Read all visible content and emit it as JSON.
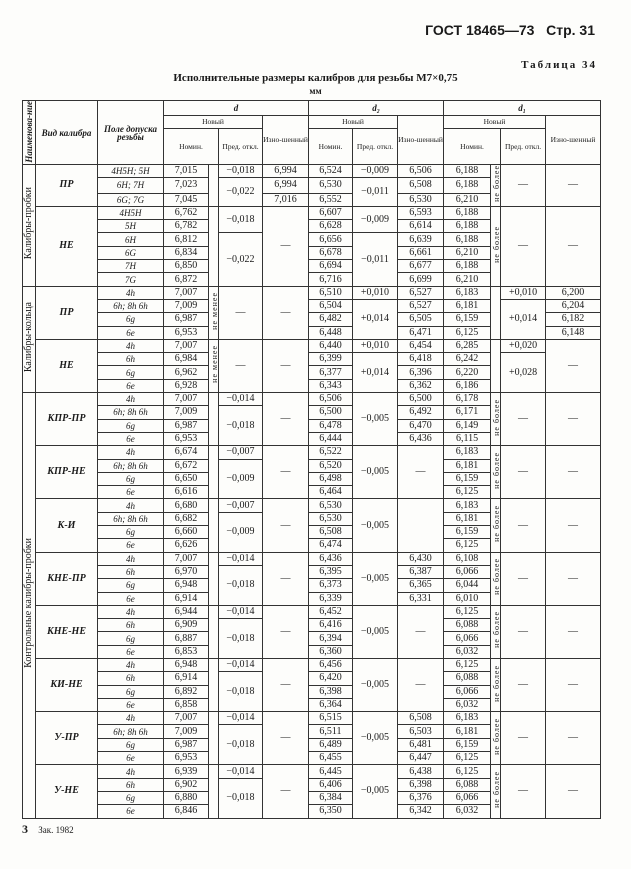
{
  "header": {
    "gost": "ГОСТ 18465—73",
    "page": "Стр. 31"
  },
  "table_no": "Таблица 34",
  "title": "Исполнительные размеры калибров для резьбы М7×0,75",
  "unit": "мм",
  "columns": {
    "name": "Наименова-ние",
    "kind": "Вид калибра",
    "field": "Поле допуска резьбы",
    "d": "d",
    "d2": "d₂",
    "d1": "d₁",
    "new": "Новый",
    "nom": "Номин.",
    "dev": "Пред. откл.",
    "worn": "Изно-шенный"
  },
  "sections": [
    {
      "label": "Калибры-пробки",
      "groups": [
        {
          "kind": "ПР",
          "cols": {
            "field": [
              "4H5H; 5H",
              "6H; 7H",
              "6G; 7G"
            ],
            "d_nom": [
              "7,015",
              "7,023",
              "7,045"
            ],
            "d_note": [
              [
                "",
                3
              ]
            ],
            "d_dev": [
              "−0,018",
              [
                "−0,022",
                2
              ]
            ],
            "d_worn": [
              "6,994",
              "6,994",
              "7,016"
            ],
            "d2_nom": [
              "6,524",
              "6,530",
              "6,552"
            ],
            "d2_dev": [
              "−0,009",
              [
                "−0,011",
                2
              ]
            ],
            "d2_worn": [
              "6,506",
              "6,508",
              "6,530"
            ],
            "d1_nom": [
              "6,188",
              "6,188",
              "6,210"
            ],
            "d1_note": [
              [
                "не более",
                3
              ]
            ],
            "d1_dev": [
              [
                "—",
                3
              ]
            ],
            "d1_worn": [
              [
                "—",
                3
              ]
            ]
          }
        },
        {
          "kind": "НЕ",
          "cols": {
            "field": [
              "4H5H",
              "5H",
              "6H",
              "6G",
              "7H",
              "7G"
            ],
            "d_nom": [
              "6,762",
              "6,782",
              "6,812",
              "6,834",
              "6,850",
              "6,872"
            ],
            "d_note": [
              [
                "",
                6
              ]
            ],
            "d_dev": [
              [
                "−0,018",
                2
              ],
              [
                "−0,022",
                4
              ]
            ],
            "d_worn": [
              [
                "—",
                6
              ]
            ],
            "d2_nom": [
              "6,607",
              "6,628",
              "6,656",
              "6,678",
              "6,694",
              "6,716"
            ],
            "d2_dev": [
              [
                "−0,009",
                2
              ],
              [
                "−0,011",
                4
              ]
            ],
            "d2_worn": [
              "6,593",
              "6,614",
              "6,639",
              "6,661",
              "6,677",
              "6,699"
            ],
            "d1_nom": [
              "6,188",
              "6,188",
              "6,188",
              "6,210",
              "6,188",
              "6,210"
            ],
            "d1_note": [
              [
                "не более",
                6
              ]
            ],
            "d1_dev": [
              [
                "—",
                6
              ]
            ],
            "d1_worn": [
              [
                "—",
                6
              ]
            ]
          }
        }
      ]
    },
    {
      "label": "Калибры-кольца",
      "groups": [
        {
          "kind": "ПР",
          "cols": {
            "field": [
              "4h",
              "6h; 8h 6h",
              "6g",
              "6e"
            ],
            "d_nom": [
              "7,007",
              "7,009",
              "6,987",
              "6,953"
            ],
            "d_note": [
              [
                "не менее",
                4
              ]
            ],
            "d_dev": [
              [
                "—",
                4
              ]
            ],
            "d_worn": [
              [
                "—",
                4
              ]
            ],
            "d2_nom": [
              "6,510",
              "6,504",
              "6,482",
              "6,448"
            ],
            "d2_dev": [
              "+0,010",
              [
                "+0,014",
                3
              ]
            ],
            "d2_worn": [
              "6,527",
              "6,527",
              "6,505",
              "6,471"
            ],
            "d1_nom": [
              "6,183",
              "6,181",
              "6,159",
              "6,125"
            ],
            "d1_note": [
              [
                "",
                4
              ]
            ],
            "d1_dev": [
              "+0,010",
              [
                "+0,014",
                3
              ]
            ],
            "d1_worn": [
              "6,200",
              "6,204",
              "6,182",
              "6,148"
            ]
          }
        },
        {
          "kind": "НЕ",
          "cols": {
            "field": [
              "4h",
              "6h",
              "6g",
              "6e"
            ],
            "d_nom": [
              "7,007",
              "6,984",
              "6,962",
              "6,928"
            ],
            "d_note": [
              [
                "не менее",
                4
              ]
            ],
            "d_dev": [
              [
                "—",
                4
              ]
            ],
            "d_worn": [
              [
                "—",
                4
              ]
            ],
            "d2_nom": [
              "6,440",
              "6,399",
              "6,377",
              "6,343"
            ],
            "d2_dev": [
              "+0,010",
              [
                "+0,014",
                3
              ]
            ],
            "d2_worn": [
              "6,454",
              "6,418",
              "6,396",
              "6,362"
            ],
            "d1_nom": [
              "6,285",
              "6,242",
              "6,220",
              "6,186"
            ],
            "d1_note": [
              [
                "",
                4
              ]
            ],
            "d1_dev": [
              "+0,020",
              [
                "+0,028",
                3
              ]
            ],
            "d1_worn": [
              [
                "—",
                4
              ]
            ]
          }
        }
      ]
    },
    {
      "label": "Контрольные калибры-пробки",
      "groups": [
        {
          "kind": "КПР-ПР",
          "cols": {
            "field": [
              "4h",
              "6h; 8h 6h",
              "6g",
              "6e"
            ],
            "d_nom": [
              "7,007",
              "7,009",
              "6,987",
              "6,953"
            ],
            "d_note": [
              [
                "",
                4
              ]
            ],
            "d_dev": [
              "−0,014",
              [
                "−0,018",
                3
              ]
            ],
            "d_worn": [
              [
                "—",
                4
              ]
            ],
            "d2_nom": [
              "6,506",
              "6,500",
              "6,478",
              "6,444"
            ],
            "d2_dev": [
              [
                "−0,005",
                4
              ]
            ],
            "d2_worn": [
              "6,500",
              "6,492",
              "6,470",
              "6,436"
            ],
            "d1_nom": [
              "6,178",
              "6,171",
              "6,149",
              "6,115"
            ],
            "d1_note": [
              [
                "не более",
                4
              ]
            ],
            "d1_dev": [
              [
                "—",
                4
              ]
            ],
            "d1_worn": [
              [
                "—",
                4
              ]
            ]
          }
        },
        {
          "kind": "КПР-НЕ",
          "cols": {
            "field": [
              "4h",
              "6h; 8h 6h",
              "6g",
              "6e"
            ],
            "d_nom": [
              "6,674",
              "6,672",
              "6,650",
              "6,616"
            ],
            "d_note": [
              [
                "",
                4
              ]
            ],
            "d_dev": [
              "−0,007",
              [
                "−0,009",
                3
              ]
            ],
            "d_worn": [
              [
                "—",
                4
              ]
            ],
            "d2_nom": [
              "6,522",
              "6,520",
              "6,498",
              "6,464"
            ],
            "d2_dev": [
              [
                "−0,005",
                4
              ]
            ],
            "d2_worn": [
              [
                "—",
                4
              ]
            ],
            "d1_nom": [
              "6,183",
              "6,181",
              "6,159",
              "6,125"
            ],
            "d1_note": [
              [
                "не более",
                4
              ]
            ],
            "d1_dev": [
              [
                "—",
                4
              ]
            ],
            "d1_worn": [
              [
                "—",
                4
              ]
            ]
          }
        },
        {
          "kind": "К-И",
          "cols": {
            "field": [
              "4h",
              "6h; 8h 6h",
              "6g",
              "6e"
            ],
            "d_nom": [
              "6,680",
              "6,682",
              "6,660",
              "6,626"
            ],
            "d_note": [
              [
                "",
                4
              ]
            ],
            "d_dev": [
              "−0,007",
              [
                "−0,009",
                3
              ]
            ],
            "d_worn": [
              [
                "—",
                4
              ]
            ],
            "d2_nom": [
              "6,530",
              "6,530",
              "6,508",
              "6,474"
            ],
            "d2_dev": [
              [
                "−0,005",
                4
              ]
            ],
            "d2_worn": [
              [
                "",
                4
              ]
            ],
            "d1_nom": [
              "6,183",
              "6,181",
              "6,159",
              "6,125"
            ],
            "d1_note": [
              [
                "не более",
                4
              ]
            ],
            "d1_dev": [
              [
                "—",
                4
              ]
            ],
            "d1_worn": [
              [
                "—",
                4
              ]
            ]
          }
        },
        {
          "kind": "КНЕ-ПР",
          "cols": {
            "field": [
              "4h",
              "6h",
              "6g",
              "6e"
            ],
            "d_nom": [
              "7,007",
              "6,970",
              "6,948",
              "6,914"
            ],
            "d_note": [
              [
                "",
                4
              ]
            ],
            "d_dev": [
              "−0,014",
              [
                "−0,018",
                3
              ]
            ],
            "d_worn": [
              [
                "—",
                4
              ]
            ],
            "d2_nom": [
              "6,436",
              "6,395",
              "6,373",
              "6,339"
            ],
            "d2_dev": [
              [
                "−0,005",
                4
              ]
            ],
            "d2_worn": [
              "6,430",
              "6,387",
              "6,365",
              "6,331"
            ],
            "d1_nom": [
              "6,108",
              "6,066",
              "6,044",
              "6,010"
            ],
            "d1_note": [
              [
                "не более",
                4
              ]
            ],
            "d1_dev": [
              [
                "—",
                4
              ]
            ],
            "d1_worn": [
              [
                "—",
                4
              ]
            ]
          }
        },
        {
          "kind": "КНЕ-НЕ",
          "cols": {
            "field": [
              "4h",
              "6h",
              "6g",
              "6e"
            ],
            "d_nom": [
              "6,944",
              "6,909",
              "6,887",
              "6,853"
            ],
            "d_note": [
              [
                "",
                4
              ]
            ],
            "d_dev": [
              "−0,014",
              [
                "−0,018",
                3
              ]
            ],
            "d_worn": [
              [
                "—",
                4
              ]
            ],
            "d2_nom": [
              "6,452",
              "6,416",
              "6,394",
              "6,360"
            ],
            "d2_dev": [
              [
                "−0,005",
                4
              ]
            ],
            "d2_worn": [
              [
                "—",
                4
              ]
            ],
            "d1_nom": [
              "6,125",
              "6,088",
              "6,066",
              "6,032"
            ],
            "d1_note": [
              [
                "не более",
                4
              ]
            ],
            "d1_dev": [
              [
                "—",
                4
              ]
            ],
            "d1_worn": [
              [
                "—",
                4
              ]
            ]
          }
        },
        {
          "kind": "КИ-НЕ",
          "cols": {
            "field": [
              "4h",
              "6h",
              "6g",
              "6e"
            ],
            "d_nom": [
              "6,948",
              "6,914",
              "6,892",
              "6,858"
            ],
            "d_note": [
              [
                "",
                4
              ]
            ],
            "d_dev": [
              "−0,014",
              [
                "−0,018",
                3
              ]
            ],
            "d_worn": [
              [
                "—",
                4
              ]
            ],
            "d2_nom": [
              "6,456",
              "6,420",
              "6,398",
              "6,364"
            ],
            "d2_dev": [
              [
                "−0,005",
                4
              ]
            ],
            "d2_worn": [
              [
                "—",
                4
              ]
            ],
            "d1_nom": [
              "6,125",
              "6,088",
              "6,066",
              "6,032"
            ],
            "d1_note": [
              [
                "не более",
                4
              ]
            ],
            "d1_dev": [
              [
                "—",
                4
              ]
            ],
            "d1_worn": [
              [
                "—",
                4
              ]
            ]
          }
        },
        {
          "kind": "У-ПР",
          "cols": {
            "field": [
              "4h",
              "6h; 8h 6h",
              "6g",
              "6e"
            ],
            "d_nom": [
              "7,007",
              "7,009",
              "6,987",
              "6,953"
            ],
            "d_note": [
              [
                "",
                4
              ]
            ],
            "d_dev": [
              "−0,014",
              [
                "−0,018",
                3
              ]
            ],
            "d_worn": [
              [
                "—",
                4
              ]
            ],
            "d2_nom": [
              "6,515",
              "6,511",
              "6,489",
              "6,455"
            ],
            "d2_dev": [
              [
                "−0,005",
                4
              ]
            ],
            "d2_worn": [
              "6,508",
              "6,503",
              "6,481",
              "6,447"
            ],
            "d1_nom": [
              "6,183",
              "6,181",
              "6,159",
              "6,125"
            ],
            "d1_note": [
              [
                "не более",
                4
              ]
            ],
            "d1_dev": [
              [
                "—",
                4
              ]
            ],
            "d1_worn": [
              [
                "—",
                4
              ]
            ]
          }
        },
        {
          "kind": "У-НЕ",
          "cols": {
            "field": [
              "4h",
              "6h",
              "6g",
              "6e"
            ],
            "d_nom": [
              "6,939",
              "6,902",
              "6,880",
              "6,846"
            ],
            "d_note": [
              [
                "",
                4
              ]
            ],
            "d_dev": [
              "−0,014",
              [
                "−0,018",
                3
              ]
            ],
            "d_worn": [
              [
                "—",
                4
              ]
            ],
            "d2_nom": [
              "6,445",
              "6,406",
              "6,384",
              "6,350"
            ],
            "d2_dev": [
              [
                "−0,005",
                4
              ]
            ],
            "d2_worn": [
              "6,438",
              "6,398",
              "6,376",
              "6,342"
            ],
            "d1_nom": [
              "6,125",
              "6,088",
              "6,066",
              "6,032"
            ],
            "d1_note": [
              [
                "не более",
                4
              ]
            ],
            "d1_dev": [
              [
                "—",
                4
              ]
            ],
            "d1_worn": [
              [
                "—",
                4
              ]
            ]
          }
        }
      ]
    }
  ],
  "footer": {
    "sheet": "3",
    "order": "Зак. 1982"
  }
}
